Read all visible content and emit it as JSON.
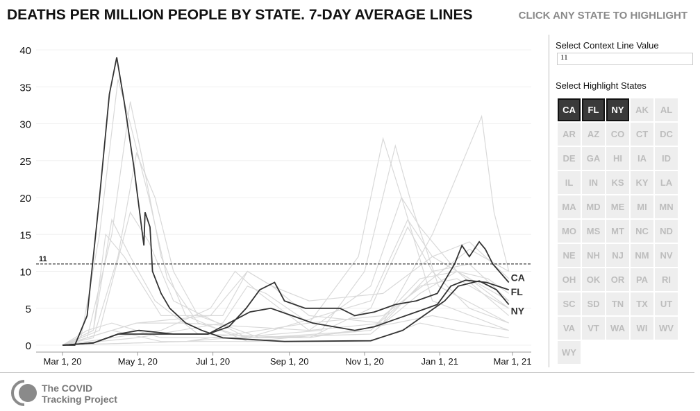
{
  "header": {
    "title": "DEATHS PER MILLION PEOPLE BY STATE. 7-DAY AVERAGE LINES",
    "hint": "CLICK ANY STATE TO HIGHLIGHT"
  },
  "panel": {
    "context_label": "Select Context Line Value",
    "context_value": "11",
    "highlight_label": "Select Highlight States",
    "states": [
      "CA",
      "FL",
      "NY",
      "AK",
      "AL",
      "AR",
      "AZ",
      "CO",
      "CT",
      "DC",
      "DE",
      "GA",
      "HI",
      "IA",
      "ID",
      "IL",
      "IN",
      "KS",
      "KY",
      "LA",
      "MA",
      "MD",
      "ME",
      "MI",
      "MN",
      "MO",
      "MS",
      "MT",
      "NC",
      "ND",
      "NE",
      "NH",
      "NJ",
      "NM",
      "NV",
      "OH",
      "OK",
      "OR",
      "PA",
      "RI",
      "SC",
      "SD",
      "TN",
      "TX",
      "UT",
      "VA",
      "VT",
      "WA",
      "WI",
      "WV",
      "WY"
    ],
    "selected": [
      "CA",
      "FL",
      "NY"
    ]
  },
  "footer": {
    "logo_line1": "The COVID",
    "logo_line2": "Tracking Project"
  },
  "colors": {
    "highlight": "#333333",
    "context": "#d9d9d9"
  },
  "chart_data": {
    "type": "line",
    "title": "DEATHS PER MILLION PEOPLE BY STATE. 7-DAY AVERAGE LINES",
    "xlabel": "",
    "ylabel": "",
    "x_unit": "days since Mar 1, 2020",
    "xlim": [
      0,
      365
    ],
    "ylim": [
      0,
      40
    ],
    "xticks": [
      {
        "day": 0,
        "label": "Mar 1, 20"
      },
      {
        "day": 61,
        "label": "May 1, 20"
      },
      {
        "day": 122,
        "label": "Jul 1, 20"
      },
      {
        "day": 184,
        "label": "Sep 1, 20"
      },
      {
        "day": 245,
        "label": "Nov 1, 20"
      },
      {
        "day": 306,
        "label": "Jan 1, 21"
      },
      {
        "day": 365,
        "label": "Mar 1, 21"
      }
    ],
    "yticks": [
      0,
      5,
      10,
      15,
      20,
      25,
      30,
      35,
      40
    ],
    "context_line": {
      "value": 11,
      "label": "11"
    },
    "highlight": [
      {
        "name": "NY",
        "points": [
          [
            0,
            0
          ],
          [
            10,
            0
          ],
          [
            20,
            4
          ],
          [
            30,
            20
          ],
          [
            38,
            34
          ],
          [
            44,
            39
          ],
          [
            50,
            33
          ],
          [
            58,
            24
          ],
          [
            66,
            13.5
          ],
          [
            67,
            18
          ],
          [
            71,
            16
          ],
          [
            73,
            10
          ],
          [
            80,
            7
          ],
          [
            87,
            5
          ],
          [
            100,
            3
          ],
          [
            113,
            2
          ],
          [
            130,
            1
          ],
          [
            180,
            0.5
          ],
          [
            250,
            0.6
          ],
          [
            276,
            2
          ],
          [
            293,
            4
          ],
          [
            310,
            6
          ],
          [
            321,
            8
          ],
          [
            338,
            8.7
          ],
          [
            352,
            7.5
          ],
          [
            362,
            5.5
          ]
        ]
      },
      {
        "name": "CA",
        "points": [
          [
            0,
            0
          ],
          [
            25,
            0.3
          ],
          [
            45,
            1.5
          ],
          [
            90,
            1.5
          ],
          [
            118,
            1.5
          ],
          [
            135,
            2.5
          ],
          [
            149,
            5
          ],
          [
            160,
            7.5
          ],
          [
            172,
            8.5
          ],
          [
            180,
            6
          ],
          [
            197,
            5
          ],
          [
            225,
            5
          ],
          [
            237,
            4
          ],
          [
            253,
            4.5
          ],
          [
            270,
            5.5
          ],
          [
            287,
            6
          ],
          [
            304,
            7
          ],
          [
            318,
            11
          ],
          [
            324,
            13.5
          ],
          [
            330,
            12
          ],
          [
            338,
            14
          ],
          [
            343,
            13
          ],
          [
            349,
            11
          ],
          [
            362,
            8.5
          ]
        ]
      },
      {
        "name": "FL",
        "points": [
          [
            0,
            0
          ],
          [
            25,
            0.3
          ],
          [
            45,
            1.5
          ],
          [
            62,
            2
          ],
          [
            90,
            1.5
          ],
          [
            118,
            1.5
          ],
          [
            135,
            3
          ],
          [
            152,
            4.5
          ],
          [
            169,
            5
          ],
          [
            186,
            4
          ],
          [
            203,
            3
          ],
          [
            220,
            2.5
          ],
          [
            237,
            2
          ],
          [
            253,
            2.5
          ],
          [
            270,
            3.5
          ],
          [
            287,
            4.5
          ],
          [
            304,
            5.5
          ],
          [
            315,
            8
          ],
          [
            327,
            8.8
          ],
          [
            344,
            8.5
          ],
          [
            362,
            7.5
          ]
        ]
      }
    ],
    "context": [
      {
        "name": "NJ",
        "points": [
          [
            0,
            0
          ],
          [
            15,
            1
          ],
          [
            30,
            15
          ],
          [
            45,
            36
          ],
          [
            55,
            30
          ],
          [
            70,
            20
          ],
          [
            85,
            9
          ],
          [
            110,
            3
          ],
          [
            150,
            1
          ],
          [
            250,
            1.5
          ],
          [
            290,
            7
          ],
          [
            320,
            10
          ],
          [
            345,
            9
          ],
          [
            362,
            7
          ]
        ]
      },
      {
        "name": "CT",
        "points": [
          [
            0,
            0
          ],
          [
            20,
            1
          ],
          [
            40,
            15
          ],
          [
            55,
            33
          ],
          [
            65,
            25
          ],
          [
            80,
            12
          ],
          [
            100,
            4
          ],
          [
            150,
            0.5
          ],
          [
            250,
            2
          ],
          [
            290,
            8
          ],
          [
            320,
            9
          ],
          [
            362,
            5
          ]
        ]
      },
      {
        "name": "MA",
        "points": [
          [
            0,
            0
          ],
          [
            25,
            1
          ],
          [
            45,
            12
          ],
          [
            60,
            26
          ],
          [
            75,
            20
          ],
          [
            90,
            10
          ],
          [
            110,
            4
          ],
          [
            160,
            1
          ],
          [
            250,
            2
          ],
          [
            290,
            9
          ],
          [
            320,
            10
          ],
          [
            362,
            6
          ]
        ]
      },
      {
        "name": "MI",
        "points": [
          [
            0,
            0
          ],
          [
            25,
            2
          ],
          [
            40,
            17
          ],
          [
            55,
            12
          ],
          [
            75,
            6
          ],
          [
            110,
            1.5
          ],
          [
            200,
            1
          ],
          [
            250,
            5
          ],
          [
            280,
            16
          ],
          [
            300,
            10
          ],
          [
            330,
            5
          ],
          [
            362,
            3
          ]
        ]
      },
      {
        "name": "LA",
        "points": [
          [
            0,
            0
          ],
          [
            25,
            2
          ],
          [
            35,
            15
          ],
          [
            50,
            12
          ],
          [
            80,
            4
          ],
          [
            130,
            4
          ],
          [
            150,
            10
          ],
          [
            170,
            8
          ],
          [
            200,
            4
          ],
          [
            260,
            3
          ],
          [
            300,
            10
          ],
          [
            330,
            11
          ],
          [
            362,
            6
          ]
        ]
      },
      {
        "name": "ND",
        "points": [
          [
            0,
            0
          ],
          [
            100,
            0.5
          ],
          [
            200,
            3
          ],
          [
            240,
            12
          ],
          [
            260,
            28
          ],
          [
            275,
            20
          ],
          [
            300,
            6
          ],
          [
            362,
            2
          ]
        ]
      },
      {
        "name": "SD",
        "points": [
          [
            0,
            0
          ],
          [
            100,
            0.5
          ],
          [
            210,
            2
          ],
          [
            245,
            10
          ],
          [
            270,
            27
          ],
          [
            285,
            18
          ],
          [
            305,
            8
          ],
          [
            362,
            3
          ]
        ]
      },
      {
        "name": "AZ",
        "points": [
          [
            0,
            0
          ],
          [
            80,
            2
          ],
          [
            120,
            5
          ],
          [
            140,
            10
          ],
          [
            160,
            7
          ],
          [
            200,
            2
          ],
          [
            260,
            3
          ],
          [
            300,
            15
          ],
          [
            325,
            25
          ],
          [
            340,
            31
          ],
          [
            350,
            18
          ],
          [
            362,
            10
          ]
        ]
      },
      {
        "name": "MS",
        "points": [
          [
            0,
            0
          ],
          [
            60,
            3
          ],
          [
            120,
            4
          ],
          [
            150,
            10
          ],
          [
            170,
            8
          ],
          [
            200,
            6
          ],
          [
            260,
            7
          ],
          [
            300,
            12
          ],
          [
            330,
            14
          ],
          [
            362,
            9
          ]
        ]
      },
      {
        "name": "TX",
        "points": [
          [
            0,
            0
          ],
          [
            60,
            1
          ],
          [
            130,
            3
          ],
          [
            150,
            8
          ],
          [
            165,
            7
          ],
          [
            200,
            3
          ],
          [
            260,
            4
          ],
          [
            300,
            9
          ],
          [
            330,
            13
          ],
          [
            362,
            10
          ]
        ]
      },
      {
        "name": "RI",
        "points": [
          [
            0,
            0
          ],
          [
            30,
            2
          ],
          [
            55,
            18
          ],
          [
            70,
            14
          ],
          [
            90,
            6
          ],
          [
            150,
            1
          ],
          [
            250,
            6
          ],
          [
            280,
            17
          ],
          [
            300,
            12
          ],
          [
            330,
            9
          ],
          [
            362,
            5
          ]
        ]
      },
      {
        "name": "NM",
        "points": [
          [
            0,
            0
          ],
          [
            60,
            3
          ],
          [
            100,
            3
          ],
          [
            200,
            2
          ],
          [
            250,
            8
          ],
          [
            275,
            20
          ],
          [
            290,
            16
          ],
          [
            320,
            10
          ],
          [
            362,
            4
          ]
        ]
      },
      {
        "name": "WA",
        "points": [
          [
            0,
            0
          ],
          [
            20,
            2
          ],
          [
            40,
            3
          ],
          [
            80,
            1
          ],
          [
            200,
            1
          ],
          [
            270,
            3
          ],
          [
            300,
            4
          ],
          [
            330,
            3
          ],
          [
            362,
            2
          ]
        ]
      },
      {
        "name": "VT",
        "points": [
          [
            0,
            0
          ],
          [
            40,
            2
          ],
          [
            80,
            0.5
          ],
          [
            250,
            0.5
          ],
          [
            290,
            3
          ],
          [
            320,
            2
          ],
          [
            362,
            1
          ]
        ]
      }
    ]
  }
}
